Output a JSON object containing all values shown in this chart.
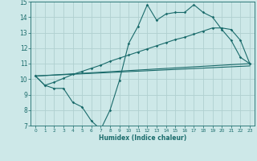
{
  "xlabel": "Humidex (Indice chaleur)",
  "xlim": [
    -0.5,
    23.5
  ],
  "ylim": [
    7,
    15
  ],
  "yticks": [
    7,
    8,
    9,
    10,
    11,
    12,
    13,
    14,
    15
  ],
  "xticks": [
    0,
    1,
    2,
    3,
    4,
    5,
    6,
    7,
    8,
    9,
    10,
    11,
    12,
    13,
    14,
    15,
    16,
    17,
    18,
    19,
    20,
    21,
    22,
    23
  ],
  "bg_color": "#cde8e8",
  "grid_color": "#b0d0d0",
  "line_color": "#1a6b6b",
  "line1_x": [
    0,
    1,
    2,
    3,
    4,
    5,
    6,
    7,
    8,
    9,
    10,
    11,
    12,
    13,
    14,
    15,
    16,
    17,
    18,
    19,
    20,
    21,
    22,
    23
  ],
  "line1_y": [
    10.2,
    9.6,
    9.4,
    9.4,
    8.5,
    8.2,
    7.3,
    6.75,
    8.0,
    9.9,
    12.3,
    13.4,
    14.8,
    13.8,
    14.2,
    14.3,
    14.3,
    14.8,
    14.3,
    14.0,
    13.2,
    12.5,
    11.4,
    11.0
  ],
  "line2_x": [
    0,
    1,
    2,
    3,
    4,
    5,
    6,
    7,
    8,
    9,
    10,
    11,
    12,
    13,
    14,
    15,
    16,
    17,
    18,
    19,
    20,
    21,
    22,
    23
  ],
  "line2_y": [
    10.2,
    9.6,
    9.8,
    10.05,
    10.3,
    10.5,
    10.7,
    10.9,
    11.15,
    11.35,
    11.55,
    11.75,
    11.95,
    12.15,
    12.35,
    12.55,
    12.7,
    12.9,
    13.1,
    13.3,
    13.3,
    13.2,
    12.5,
    11.0
  ],
  "line3_x": [
    0,
    23
  ],
  "line3_y": [
    10.2,
    10.85
  ],
  "line4_x": [
    0,
    23
  ],
  "line4_y": [
    10.2,
    11.0
  ]
}
